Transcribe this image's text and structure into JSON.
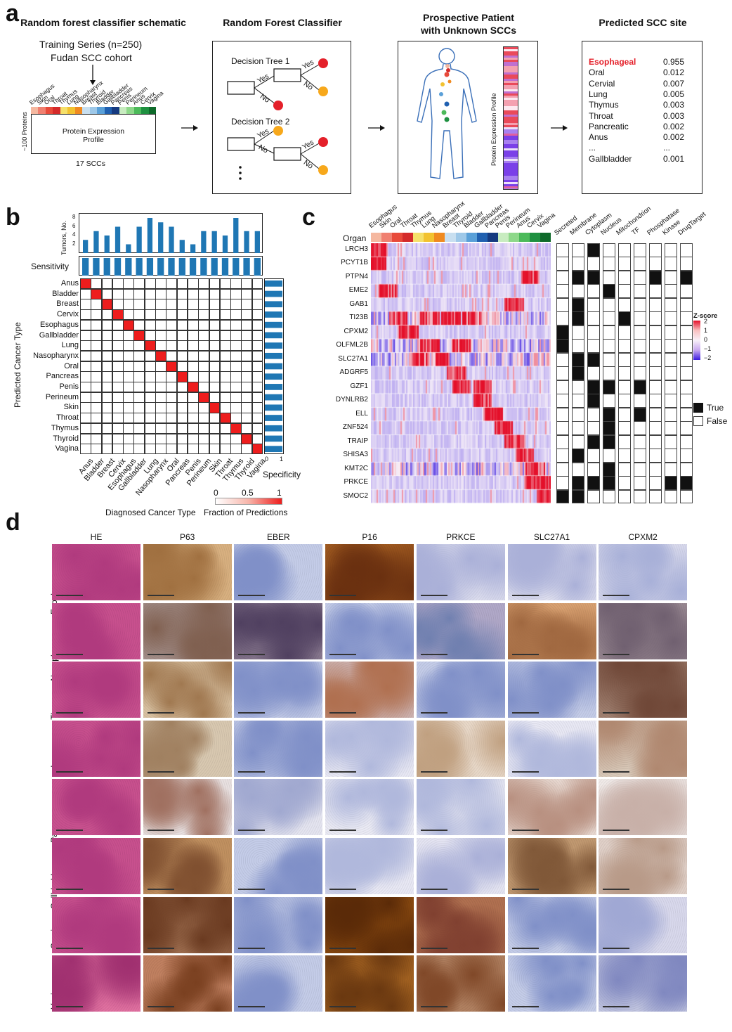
{
  "panels": {
    "a": "a",
    "b": "b",
    "c": "c",
    "d": "d"
  },
  "panel_a": {
    "titles": [
      "Random forest classifier schematic",
      "Random Forest Classifier",
      "Prospective Patient\nwith Unknown SCCs",
      "Predicted SCC site"
    ],
    "training_line1": "Training Series (n=250)",
    "training_line2": "Fudan SCC cohort",
    "site_labels": [
      "Esophagus",
      "Skin",
      "Oral",
      "Throat",
      "Thymus",
      "Lung",
      "Nasopharynx",
      "Breast",
      "Thyroid",
      "Bladder",
      "Gallbladder",
      "Pancreas",
      "Penis",
      "Perineum",
      "Anus",
      "Cervix",
      "Vagina"
    ],
    "site_colors": [
      "#f5b8a0",
      "#f08070",
      "#e84a3a",
      "#d42a2a",
      "#f5e06a",
      "#f2c230",
      "#f08a20",
      "#c8dff0",
      "#9ec8e8",
      "#5aa0d8",
      "#2060b0",
      "#153a80",
      "#c8ecc0",
      "#8ed88a",
      "#4cba5a",
      "#1e9040",
      "#0e6a2a"
    ],
    "proteins_label": "~100 Proteins",
    "profile_label": "Protein Expression\nProfile",
    "sccs_label": "17 SCCs",
    "tree1": "Decision Tree 1",
    "tree2": "Decision Tree 2",
    "yes": "Yes",
    "no": "No",
    "expression_profile_label": "Protein Expression Profile",
    "predictions": [
      {
        "site": "Esophageal",
        "score": "0.955"
      },
      {
        "site": "Oral",
        "score": "0.012"
      },
      {
        "site": "Cervial",
        "score": "0.007"
      },
      {
        "site": "Lung",
        "score": "0.005"
      },
      {
        "site": "Thymus",
        "score": "0.003"
      },
      {
        "site": "Throat",
        "score": "0.003"
      },
      {
        "site": "Pancreatic",
        "score": "0.002"
      },
      {
        "site": "Anus",
        "score": "0.002"
      },
      {
        "site": "...",
        "score": "..."
      },
      {
        "site": "Gallbladder",
        "score": "0.001"
      }
    ]
  },
  "panel_b": {
    "tumors_label": "Tumors, No.",
    "sensitivity_label": "Sensitivity",
    "specificity_label": "Specificity",
    "ylabel": "Predicted Cancer Type",
    "xlabel": "Diagnosed Cancer Type",
    "fraction_label": "Fraction of Predictions",
    "cancer_types": [
      "Anus",
      "Bladder",
      "Breast",
      "Cervix",
      "Esophagus",
      "Gallbladder",
      "Lung",
      "Nasopharynx",
      "Oral",
      "Pancreas",
      "Penis",
      "Perineum",
      "Skin",
      "Throat",
      "Thymus",
      "Thyroid",
      "Vagina"
    ],
    "tumor_ticks": [
      "8",
      "6",
      "4",
      "2"
    ],
    "tick_0_1": [
      "0",
      "1"
    ],
    "spec_ticks": [
      "0",
      "0.5",
      "1"
    ],
    "colorbar_ticks": [
      "0",
      "0.5",
      "1"
    ]
  },
  "panel_c": {
    "organ_label": "Organ",
    "organs": [
      "Esophagus",
      "Skin",
      "Oral",
      "Throat",
      "Thymus",
      "Lung",
      "Nasopharynx",
      "Breast",
      "Thyroid",
      "Bladder",
      "Gallbladder",
      "Pancreas",
      "Penis",
      "Perineum",
      "Anus",
      "Cervix",
      "Vagina"
    ],
    "genes": [
      "LRCH3",
      "PCYT1B",
      "PTPN4",
      "EME2",
      "GAB1",
      "TI23B",
      "CPXM2",
      "OLFML2B",
      "SLC27A1",
      "ADGRF5",
      "GZF1",
      "DYNLRB2",
      "ELL",
      "ZNF524",
      "TRAIP",
      "SHISA3",
      "KMT2C",
      "PRKCE",
      "SMOC2"
    ],
    "annotations": [
      "Secreted",
      "Membrane",
      "Cytoplasm",
      "Nucleus",
      "Mitochondrion",
      "TF",
      "Phosphatase",
      "Kinase",
      "DrugTarget"
    ],
    "zscore_label": "Z-score",
    "zscore_ticks": [
      "2",
      "1",
      "0",
      "−1",
      "−2"
    ],
    "legend_true": "True",
    "legend_false": "False"
  },
  "panel_d": {
    "columns": [
      "HE",
      "P63",
      "EBER",
      "P16",
      "PRKCE",
      "SLC27A1",
      "CPXM2"
    ],
    "rows": [
      "Esophagus",
      "Nasopharynx",
      "Thymus",
      "Lung",
      "Pancreas",
      "Gallbladder",
      "Cervix",
      "Vagina"
    ]
  },
  "chart_data": [
    {
      "type": "bar",
      "title": "",
      "ylabel": "Tumors, No.",
      "categories": [
        "Anus",
        "Bladder",
        "Breast",
        "Cervix",
        "Esophagus",
        "Gallbladder",
        "Lung",
        "Nasopharynx",
        "Oral",
        "Pancreas",
        "Penis",
        "Perineum",
        "Skin",
        "Throat",
        "Thymus",
        "Thyroid",
        "Vagina"
      ],
      "values": [
        3,
        5,
        4,
        6,
        2,
        6,
        8,
        7,
        6,
        3,
        2,
        5,
        5,
        4,
        8,
        5,
        5
      ],
      "ylim": [
        0,
        8
      ]
    },
    {
      "type": "bar",
      "ylabel": "Sensitivity",
      "categories": [
        "Anus",
        "Bladder",
        "Breast",
        "Cervix",
        "Esophagus",
        "Gallbladder",
        "Lung",
        "Nasopharynx",
        "Oral",
        "Pancreas",
        "Penis",
        "Perineum",
        "Skin",
        "Throat",
        "Thymus",
        "Thyroid",
        "Vagina"
      ],
      "values": [
        1,
        1,
        1,
        1,
        1,
        1,
        1,
        1,
        1,
        1,
        1,
        1,
        1,
        1,
        1,
        1,
        1
      ],
      "ylim": [
        0,
        1
      ]
    },
    {
      "type": "heatmap",
      "xlabel": "Diagnosed Cancer Type",
      "ylabel": "Predicted Cancer Type",
      "note": "diagonal = 1, off-diagonal = 0"
    },
    {
      "type": "bar",
      "xlabel": "Specificity",
      "values": [
        1,
        1,
        1,
        1,
        1,
        1,
        1,
        1,
        1,
        1,
        1,
        1,
        1,
        1,
        1,
        1,
        1
      ],
      "xlim": [
        0,
        1
      ]
    }
  ]
}
